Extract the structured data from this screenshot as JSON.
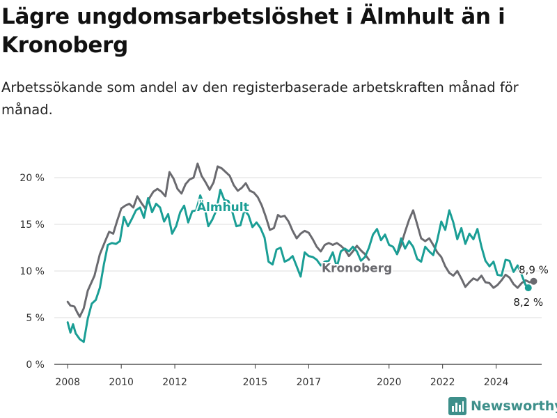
{
  "header": {
    "title": "Lägre ungdomsarbetslöshet i Älmhult än i Kronoberg",
    "subtitle": "Arbetssökande som andel av den registerbaserade arbetskraften månad för månad."
  },
  "branding": {
    "name": "Newsworthy",
    "icon": "bar-chart-logo-icon",
    "color": "#3d8f8a"
  },
  "chart_data": {
    "type": "line",
    "title": "Lägre ungdomsarbetslöshet i Älmhult än i Kronoberg",
    "subtitle": "Arbetssökande som andel av den registerbaserade arbetskraften månad för månad.",
    "xlabel": "",
    "ylabel": "",
    "xlim": [
      2007.5,
      2025.7
    ],
    "ylim": [
      0,
      20
    ],
    "y_ticks": [
      0,
      5,
      10,
      15,
      20
    ],
    "y_tick_labels": [
      "0 %",
      "5 %",
      "10 %",
      "15 %",
      "20 %"
    ],
    "x_ticks": [
      2008,
      2010,
      2012,
      2015,
      2017,
      2020,
      2022,
      2024
    ],
    "x_tick_labels": [
      "2008",
      "2010",
      "2012",
      "2015",
      "2017",
      "2020",
      "2022",
      "2024"
    ],
    "grid": true,
    "legend": "inline labels",
    "series": [
      {
        "name": "Kronoberg",
        "color": "#6a6a6f",
        "label_pos": [
          2018.8,
          9.9
        ],
        "end_label": "8,9 %",
        "points": [
          [
            2008.0,
            6.7
          ],
          [
            2008.1,
            6.3
          ],
          [
            2008.25,
            6.2
          ],
          [
            2008.35,
            5.6
          ],
          [
            2008.45,
            5.1
          ],
          [
            2008.6,
            6.0
          ],
          [
            2008.75,
            7.9
          ],
          [
            2009.0,
            9.5
          ],
          [
            2009.2,
            11.8
          ],
          [
            2009.4,
            13.2
          ],
          [
            2009.55,
            14.2
          ],
          [
            2009.7,
            14.0
          ],
          [
            2009.85,
            15.4
          ],
          [
            2010.0,
            16.7
          ],
          [
            2010.15,
            17.0
          ],
          [
            2010.3,
            17.2
          ],
          [
            2010.45,
            16.8
          ],
          [
            2010.6,
            18.0
          ],
          [
            2010.75,
            17.3
          ],
          [
            2010.9,
            16.7
          ],
          [
            2011.05,
            17.8
          ],
          [
            2011.2,
            18.5
          ],
          [
            2011.35,
            18.8
          ],
          [
            2011.5,
            18.5
          ],
          [
            2011.65,
            18.0
          ],
          [
            2011.8,
            20.6
          ],
          [
            2011.95,
            19.9
          ],
          [
            2012.1,
            18.8
          ],
          [
            2012.25,
            18.3
          ],
          [
            2012.4,
            19.3
          ],
          [
            2012.55,
            19.8
          ],
          [
            2012.7,
            20.0
          ],
          [
            2012.85,
            21.5
          ],
          [
            2013.0,
            20.2
          ],
          [
            2013.15,
            19.5
          ],
          [
            2013.3,
            18.7
          ],
          [
            2013.45,
            19.5
          ],
          [
            2013.6,
            21.2
          ],
          [
            2013.75,
            21.0
          ],
          [
            2013.9,
            20.6
          ],
          [
            2014.05,
            20.2
          ],
          [
            2014.2,
            19.2
          ],
          [
            2014.35,
            18.6
          ],
          [
            2014.5,
            18.9
          ],
          [
            2014.65,
            19.4
          ],
          [
            2014.8,
            18.6
          ],
          [
            2014.95,
            18.4
          ],
          [
            2015.1,
            17.9
          ],
          [
            2015.25,
            17.0
          ],
          [
            2015.4,
            15.8
          ],
          [
            2015.55,
            14.4
          ],
          [
            2015.7,
            14.6
          ],
          [
            2015.85,
            16.0
          ],
          [
            2015.95,
            15.8
          ],
          [
            2016.1,
            15.9
          ],
          [
            2016.25,
            15.3
          ],
          [
            2016.4,
            14.3
          ],
          [
            2016.55,
            13.5
          ],
          [
            2016.7,
            14.0
          ],
          [
            2016.85,
            14.3
          ],
          [
            2017.0,
            14.1
          ],
          [
            2017.15,
            13.4
          ],
          [
            2017.3,
            12.6
          ],
          [
            2017.45,
            12.1
          ],
          [
            2017.6,
            12.8
          ],
          [
            2017.75,
            13.0
          ],
          [
            2017.9,
            12.8
          ],
          [
            2018.05,
            13.0
          ],
          [
            2018.2,
            12.7
          ],
          [
            2018.35,
            12.3
          ],
          [
            2018.5,
            11.6
          ],
          [
            2018.65,
            12.1
          ],
          [
            2018.8,
            12.7
          ],
          [
            2018.95,
            12.2
          ],
          [
            2019.1,
            11.8
          ],
          [
            2019.25,
            11.2
          ]
        ],
        "points_b": [
          [
            2020.3,
            11.8
          ],
          [
            2020.45,
            12.8
          ],
          [
            2020.6,
            14.2
          ],
          [
            2020.75,
            15.5
          ],
          [
            2020.9,
            16.5
          ],
          [
            2021.05,
            15.0
          ],
          [
            2021.2,
            13.5
          ],
          [
            2021.35,
            13.2
          ],
          [
            2021.5,
            13.5
          ],
          [
            2021.65,
            12.8
          ],
          [
            2021.8,
            12.0
          ],
          [
            2021.95,
            11.5
          ],
          [
            2022.1,
            10.5
          ],
          [
            2022.25,
            9.8
          ],
          [
            2022.4,
            9.5
          ],
          [
            2022.55,
            10.0
          ],
          [
            2022.7,
            9.2
          ],
          [
            2022.85,
            8.3
          ],
          [
            2023.0,
            8.8
          ],
          [
            2023.15,
            9.2
          ],
          [
            2023.3,
            9.0
          ],
          [
            2023.45,
            9.5
          ],
          [
            2023.6,
            8.8
          ],
          [
            2023.75,
            8.7
          ],
          [
            2023.9,
            8.2
          ],
          [
            2024.05,
            8.5
          ],
          [
            2024.2,
            9.0
          ],
          [
            2024.35,
            9.6
          ],
          [
            2024.5,
            9.3
          ],
          [
            2024.65,
            8.6
          ],
          [
            2024.8,
            8.2
          ],
          [
            2024.95,
            8.7
          ],
          [
            2025.1,
            9.0
          ],
          [
            2025.25,
            8.8
          ],
          [
            2025.4,
            8.9
          ]
        ]
      },
      {
        "name": "Älmhult",
        "color": "#1a9e95",
        "label_pos": [
          2013.8,
          16.4
        ],
        "end_label": "8,2 %",
        "points": [
          [
            2008.0,
            4.5
          ],
          [
            2008.1,
            3.4
          ],
          [
            2008.2,
            4.3
          ],
          [
            2008.3,
            3.3
          ],
          [
            2008.45,
            2.7
          ],
          [
            2008.6,
            2.4
          ],
          [
            2008.75,
            4.9
          ],
          [
            2008.9,
            6.5
          ],
          [
            2009.05,
            6.9
          ],
          [
            2009.2,
            8.2
          ],
          [
            2009.35,
            10.7
          ],
          [
            2009.5,
            12.8
          ],
          [
            2009.65,
            13.0
          ],
          [
            2009.8,
            12.9
          ],
          [
            2009.95,
            13.2
          ],
          [
            2010.1,
            15.8
          ],
          [
            2010.25,
            14.8
          ],
          [
            2010.4,
            15.6
          ],
          [
            2010.55,
            16.5
          ],
          [
            2010.7,
            16.8
          ],
          [
            2010.85,
            15.7
          ],
          [
            2011.0,
            17.8
          ],
          [
            2011.15,
            16.3
          ],
          [
            2011.3,
            17.2
          ],
          [
            2011.45,
            16.8
          ],
          [
            2011.6,
            15.3
          ],
          [
            2011.75,
            16.1
          ],
          [
            2011.9,
            14.0
          ],
          [
            2012.05,
            14.8
          ],
          [
            2012.2,
            16.3
          ],
          [
            2012.35,
            17.0
          ],
          [
            2012.5,
            15.2
          ],
          [
            2012.65,
            16.4
          ],
          [
            2012.8,
            16.5
          ],
          [
            2012.95,
            18.1
          ],
          [
            2013.1,
            17.0
          ],
          [
            2013.25,
            14.8
          ],
          [
            2013.4,
            15.5
          ],
          [
            2013.55,
            16.5
          ],
          [
            2013.7,
            18.7
          ],
          [
            2013.85,
            17.6
          ],
          [
            2014.0,
            17.5
          ],
          [
            2014.15,
            16.3
          ],
          [
            2014.3,
            14.8
          ],
          [
            2014.45,
            14.9
          ],
          [
            2014.6,
            16.5
          ],
          [
            2014.75,
            16.0
          ],
          [
            2014.9,
            14.7
          ],
          [
            2015.05,
            15.2
          ],
          [
            2015.2,
            14.6
          ],
          [
            2015.35,
            13.6
          ],
          [
            2015.5,
            11.0
          ],
          [
            2015.65,
            10.7
          ],
          [
            2015.8,
            12.3
          ],
          [
            2015.95,
            12.5
          ],
          [
            2016.1,
            11.0
          ],
          [
            2016.25,
            11.2
          ],
          [
            2016.4,
            11.6
          ],
          [
            2016.55,
            10.5
          ],
          [
            2016.7,
            9.4
          ],
          [
            2016.85,
            12.0
          ],
          [
            2017.0,
            11.6
          ],
          [
            2017.15,
            11.5
          ],
          [
            2017.3,
            11.2
          ],
          [
            2017.45,
            10.6
          ],
          [
            2017.6,
            11.0
          ],
          [
            2017.75,
            11.1
          ],
          [
            2017.9,
            12.0
          ],
          [
            2018.05,
            10.4
          ],
          [
            2018.2,
            12.1
          ],
          [
            2018.35,
            12.4
          ],
          [
            2018.5,
            12.1
          ],
          [
            2018.65,
            12.6
          ],
          [
            2018.8,
            12.1
          ],
          [
            2018.95,
            11.1
          ],
          [
            2019.1,
            11.5
          ],
          [
            2019.25,
            12.5
          ],
          [
            2019.4,
            13.9
          ],
          [
            2019.55,
            14.5
          ],
          [
            2019.7,
            13.3
          ],
          [
            2019.85,
            13.9
          ],
          [
            2020.0,
            12.8
          ],
          [
            2020.15,
            12.6
          ],
          [
            2020.3,
            11.8
          ],
          [
            2020.45,
            13.5
          ],
          [
            2020.6,
            12.4
          ],
          [
            2020.75,
            13.2
          ],
          [
            2020.9,
            12.6
          ],
          [
            2021.05,
            11.3
          ],
          [
            2021.2,
            11.0
          ],
          [
            2021.35,
            12.6
          ],
          [
            2021.5,
            12.1
          ],
          [
            2021.65,
            11.7
          ],
          [
            2021.8,
            13.3
          ],
          [
            2021.95,
            15.3
          ],
          [
            2022.1,
            14.4
          ],
          [
            2022.25,
            16.5
          ],
          [
            2022.4,
            15.2
          ],
          [
            2022.55,
            13.4
          ],
          [
            2022.7,
            14.6
          ],
          [
            2022.85,
            12.9
          ],
          [
            2023.0,
            14.0
          ],
          [
            2023.15,
            13.4
          ],
          [
            2023.3,
            14.5
          ],
          [
            2023.45,
            12.6
          ],
          [
            2023.6,
            11.1
          ],
          [
            2023.75,
            10.5
          ],
          [
            2023.9,
            11.0
          ],
          [
            2024.05,
            9.6
          ],
          [
            2024.2,
            9.5
          ],
          [
            2024.35,
            11.2
          ],
          [
            2024.5,
            11.1
          ],
          [
            2024.65,
            9.9
          ],
          [
            2024.8,
            10.6
          ],
          [
            2024.95,
            9.6
          ],
          [
            2025.1,
            8.5
          ],
          [
            2025.2,
            8.2
          ]
        ]
      }
    ]
  }
}
